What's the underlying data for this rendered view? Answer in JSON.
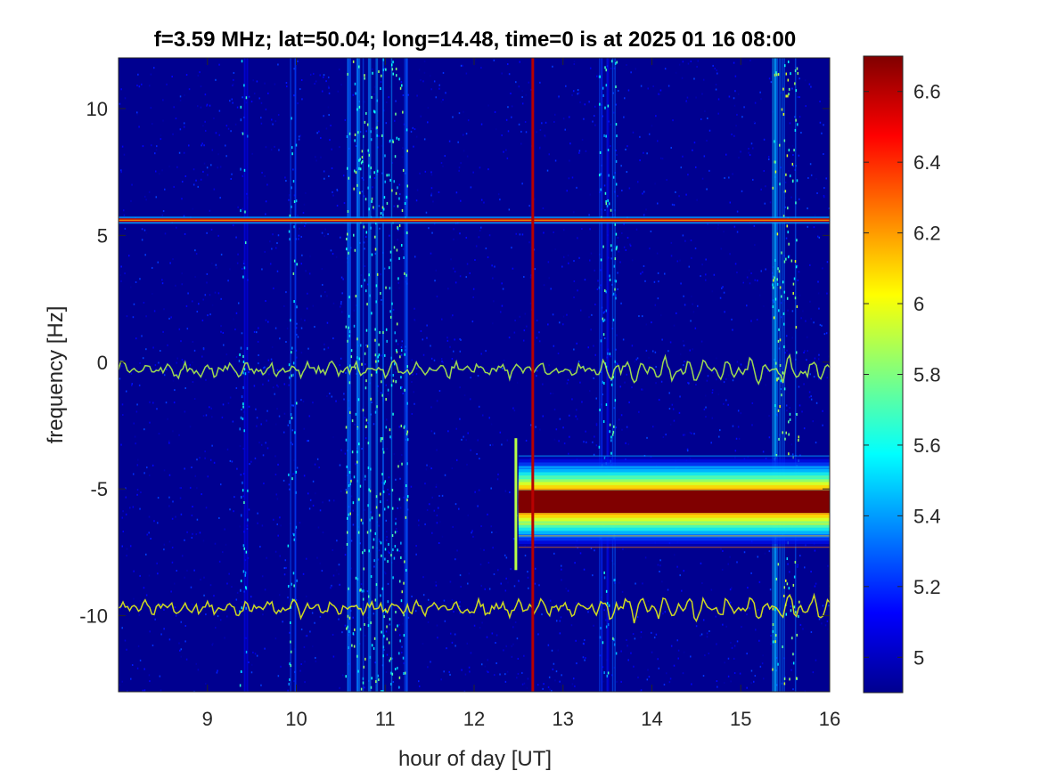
{
  "chart_data": {
    "type": "heatmap",
    "title": "f=3.59 MHz;  lat=50.04; long=14.48, time=0 is at 2025 01 16 08:00",
    "xlabel": "hour of day [UT]",
    "ylabel": "frequency [Hz]",
    "xlim": [
      8,
      16
    ],
    "ylim": [
      -13,
      12
    ],
    "x_ticks": [
      9,
      10,
      11,
      12,
      13,
      14,
      15,
      16
    ],
    "y_ticks": [
      -10,
      -5,
      0,
      5,
      10
    ],
    "colorbar": {
      "colormap": "jet",
      "range": [
        4.9,
        6.7
      ],
      "ticks": [
        5,
        5.2,
        5.4,
        5.6,
        5.8,
        6,
        6.2,
        6.4,
        6.6
      ]
    },
    "background_level": 4.95,
    "features": [
      {
        "kind": "horizontal_line",
        "y": 5.6,
        "x_start": 8.0,
        "x_end": 16.0,
        "level": 6.6
      },
      {
        "kind": "horizontal_band",
        "y": -5.5,
        "x_start": 12.5,
        "x_end": 16.0,
        "level": 6.7,
        "halfwidth_hz": 1.8
      },
      {
        "kind": "wavy_trace",
        "y": -0.3,
        "x_start": 8.0,
        "x_end": 16.0,
        "level": 5.9
      },
      {
        "kind": "wavy_trace",
        "y": -9.7,
        "x_start": 8.0,
        "x_end": 16.0,
        "level": 6.0
      },
      {
        "kind": "vertical_line",
        "x": 12.66,
        "level": 6.6
      },
      {
        "kind": "vertical_line",
        "x": 12.47,
        "y_range": [
          -8.2,
          -3.0
        ],
        "level": 5.9
      },
      {
        "kind": "vertical_band",
        "x_range": [
          10.55,
          11.25
        ],
        "level": 5.4
      },
      {
        "kind": "vertical_band",
        "x_range": [
          15.35,
          15.65
        ],
        "level": 5.5
      },
      {
        "kind": "vertical_band",
        "x_range": [
          9.35,
          9.45
        ],
        "level": 5.2
      },
      {
        "kind": "vertical_band",
        "x_range": [
          9.9,
          10.0
        ],
        "level": 5.3
      },
      {
        "kind": "vertical_band",
        "x_range": [
          13.4,
          13.6
        ],
        "level": 5.3
      }
    ]
  }
}
